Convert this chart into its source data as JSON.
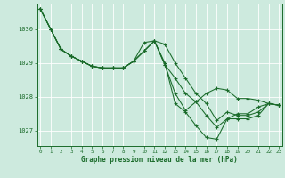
{
  "bg_color": "#cdeade",
  "grid_color": "#ffffff",
  "line_color": "#1a6b2a",
  "xlabel": "Graphe pression niveau de la mer (hPa)",
  "xlabel_color": "#1a6b2a",
  "ylabel_ticks": [
    1027,
    1028,
    1029,
    1030
  ],
  "xticks": [
    0,
    1,
    2,
    3,
    4,
    5,
    6,
    7,
    8,
    9,
    10,
    11,
    12,
    13,
    14,
    15,
    16,
    17,
    18,
    19,
    20,
    21,
    22,
    23
  ],
  "xlim": [
    -0.3,
    23.3
  ],
  "ylim": [
    1026.55,
    1030.75
  ],
  "series": [
    [
      1030.6,
      1030.0,
      1029.4,
      1029.2,
      1029.05,
      1028.9,
      1028.85,
      1028.85,
      1028.85,
      1029.05,
      1029.35,
      1029.65,
      1029.55,
      1029.0,
      1028.55,
      1028.1,
      1027.8,
      1027.3,
      1027.55,
      1027.45,
      1027.45,
      1027.55,
      1027.8,
      1027.75
    ],
    [
      1030.6,
      1030.0,
      1029.4,
      1029.2,
      1029.05,
      1028.9,
      1028.85,
      1028.85,
      1028.85,
      1029.05,
      1029.35,
      1029.65,
      1028.95,
      1028.55,
      1028.1,
      1027.85,
      1027.45,
      1027.1,
      1027.35,
      1027.5,
      1027.5,
      1027.7,
      1027.8,
      1027.75
    ],
    [
      1030.6,
      1030.0,
      1029.4,
      1029.2,
      1029.05,
      1028.9,
      1028.85,
      1028.85,
      1028.85,
      1029.05,
      1029.6,
      1029.65,
      1029.0,
      1027.8,
      1027.55,
      1027.15,
      1026.8,
      1026.75,
      1027.35,
      1027.35,
      1027.35,
      1027.45,
      1027.8,
      1027.75
    ],
    [
      1030.6,
      1030.0,
      1029.4,
      1029.2,
      1029.05,
      1028.9,
      1028.85,
      1028.85,
      1028.85,
      1029.05,
      1029.35,
      1029.65,
      1028.95,
      1028.1,
      1027.6,
      1027.85,
      1028.1,
      1028.25,
      1028.2,
      1027.95,
      1027.95,
      1027.9,
      1027.8,
      1027.75
    ]
  ]
}
